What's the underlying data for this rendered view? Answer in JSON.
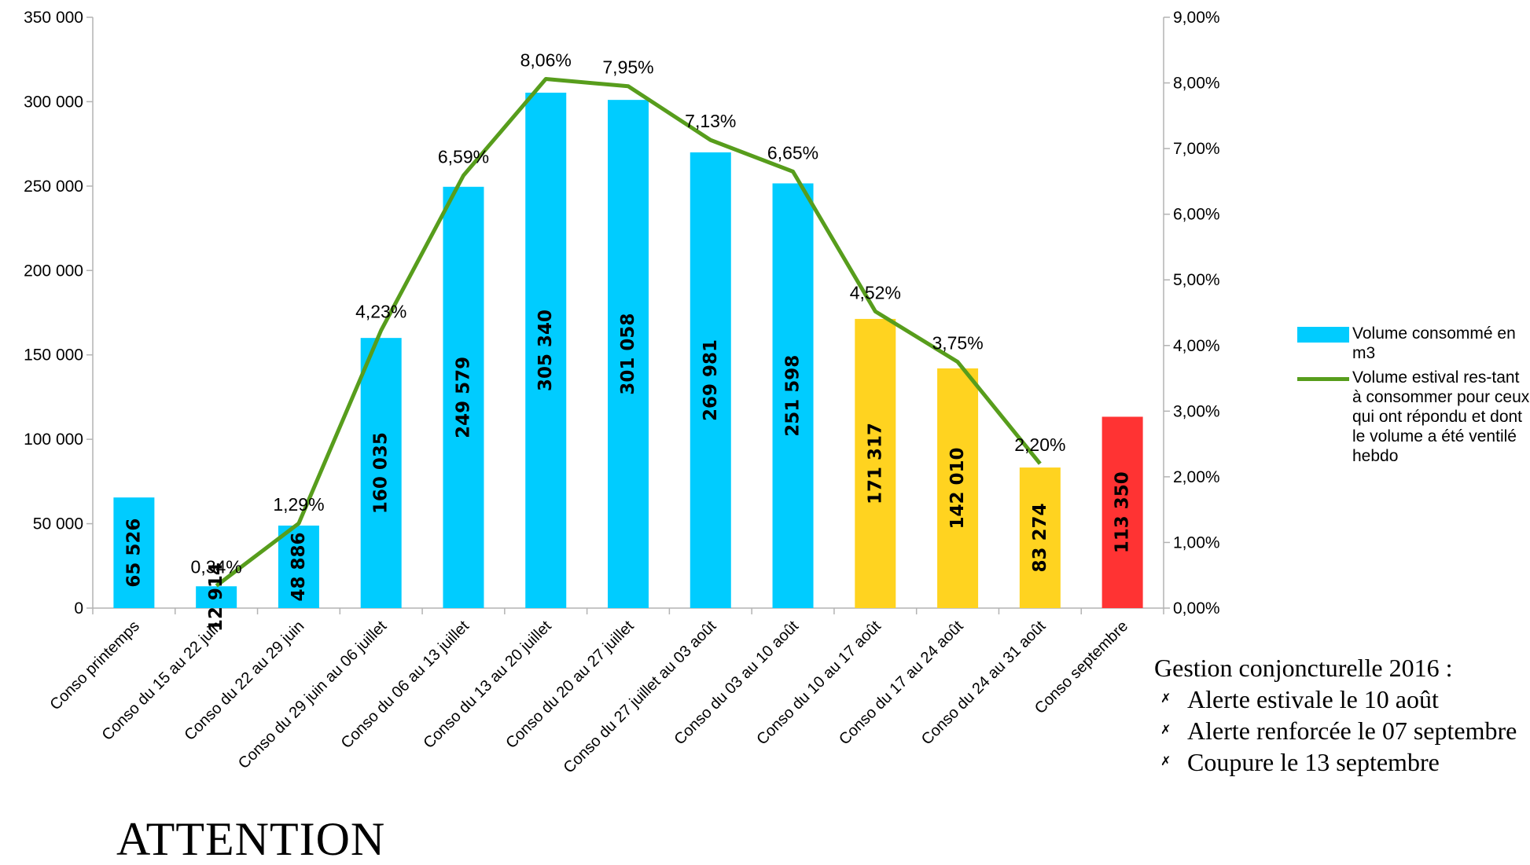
{
  "chart_data": {
    "type": "bar",
    "categories": [
      "Conso printemps",
      "Conso du 15 au 22 juin",
      "Conso du 22 au 29 juin",
      "Conso du 29 juin au 06 juillet",
      "Conso du 06 au 13 juillet",
      "Conso du 13 au 20 juillet",
      "Conso du 20 au 27 juillet",
      "Conso du 27 juillet au 03 août",
      "Conso du 03 au 10 août",
      "Conso du 10 au 17 août",
      "Conso du 17 au 24 août",
      "Conso du 24 au 31 août",
      "Conso septembre"
    ],
    "bar_values": [
      65526,
      12914,
      48886,
      160035,
      249579,
      305340,
      301058,
      269981,
      251598,
      171317,
      142010,
      83274,
      113350
    ],
    "bar_labels": [
      "65 526",
      "12 914",
      "48 886",
      "160 035",
      "249 579",
      "305 340",
      "301 058",
      "269 981",
      "251 598",
      "171 317",
      "142 010",
      "83 274",
      "113 350"
    ],
    "bar_colors": [
      "#00ccff",
      "#00ccff",
      "#00ccff",
      "#00ccff",
      "#00ccff",
      "#00ccff",
      "#00ccff",
      "#00ccff",
      "#00ccff",
      "#ffd320",
      "#ffd320",
      "#ffd320",
      "#ff3333"
    ],
    "line_values": [
      null,
      0.0034,
      0.0129,
      0.0423,
      0.0659,
      0.0806,
      0.0795,
      0.0713,
      0.0665,
      0.0452,
      0.0375,
      0.022,
      null
    ],
    "line_labels": [
      "",
      "0,34%",
      "1,29%",
      "4,23%",
      "6,59%",
      "8,06%",
      "7,95%",
      "7,13%",
      "6,65%",
      "4,52%",
      "3,75%",
      "2,20%",
      ""
    ],
    "line_color": "#579d1c",
    "y_left_range": [
      0,
      350000
    ],
    "y_left_ticks": [
      "0",
      "50 000",
      "100 000",
      "150 000",
      "200 000",
      "250 000",
      "300 000",
      "350 000"
    ],
    "y_right_range": [
      0,
      0.09
    ],
    "y_right_ticks": [
      "0,00%",
      "1,00%",
      "2,00%",
      "3,00%",
      "4,00%",
      "5,00%",
      "6,00%",
      "7,00%",
      "8,00%",
      "9,00%"
    ],
    "grid": false,
    "legend_placement": "right",
    "series": [
      {
        "name": "Volume consommé en m3",
        "color": "#00ccff"
      },
      {
        "name": "Volume estival res-tant à consommer pour ceux qui ont répondu et dont le volume a été ventilé hebdo",
        "color": "#579d1c"
      }
    ]
  },
  "legend": {
    "bar_label": "Volume consommé en m3",
    "line_label": "Volume estival res-tant à consommer pour ceux qui ont répondu et dont le volume a été ventilé hebdo"
  },
  "notes": {
    "title": "Gestion conjoncturelle 2016 :",
    "items": [
      "Alerte estivale le 10 août",
      "Alerte renforcée le 07 septembre",
      "Coupure le 13 septembre"
    ],
    "bullet": "✗"
  },
  "attention": "ATTENTION"
}
